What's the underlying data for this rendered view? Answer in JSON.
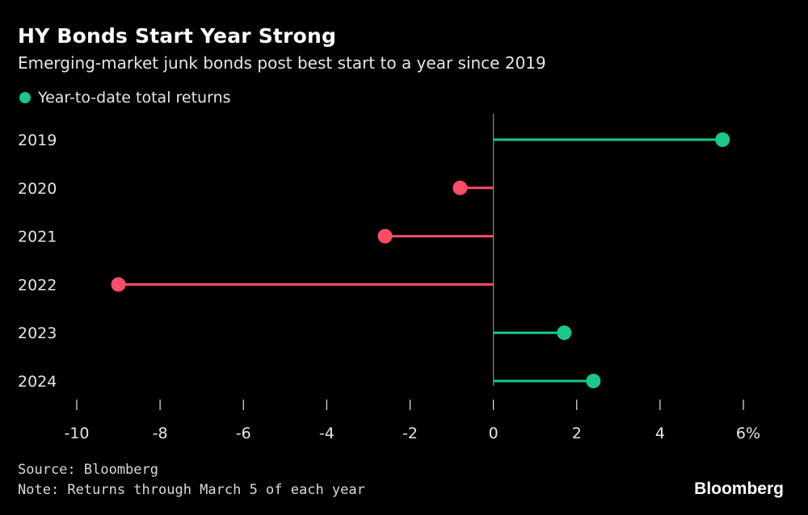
{
  "title": "HY Bonds Start Year Strong",
  "subtitle": "Emerging-market junk bonds post best start to a year since 2019",
  "legend": {
    "label": "Year-to-date total returns",
    "color": "#19c98a"
  },
  "colors": {
    "positive": "#19c98a",
    "negative": "#ff4d67",
    "axis": "#8c8c8c",
    "text": "#e6e6e6"
  },
  "chart_data": {
    "type": "lollipop",
    "orientation": "horizontal",
    "categories": [
      "2019",
      "2020",
      "2021",
      "2022",
      "2023",
      "2024"
    ],
    "series": [
      {
        "name": "Year-to-date total returns",
        "values": [
          5.5,
          -0.8,
          -2.6,
          -9.0,
          1.7,
          2.4
        ]
      }
    ],
    "xlim": [
      -10,
      6
    ],
    "xticks": [
      "-10",
      "-8",
      "-6",
      "-4",
      "-2",
      "0",
      "2",
      "4",
      "6%"
    ],
    "xtick_values": [
      -10,
      -8,
      -6,
      -4,
      -2,
      0,
      2,
      4,
      6
    ]
  },
  "footer": {
    "source": "Source: Bloomberg",
    "note": "Note: Returns through March 5 of each year",
    "brand": "Bloomberg"
  }
}
